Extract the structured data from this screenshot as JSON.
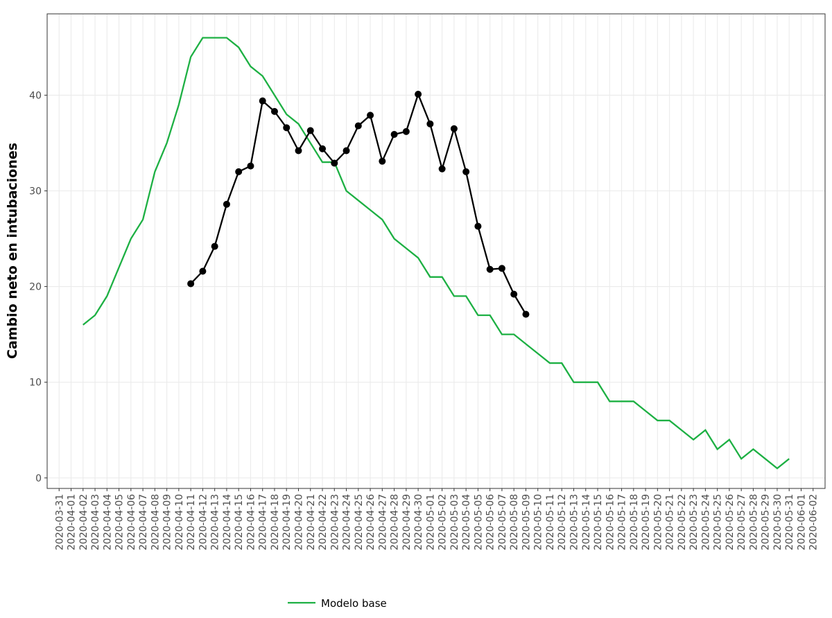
{
  "chart_data": {
    "type": "line",
    "ylabel": "Cambio neto en intubaciones",
    "xlim": [
      "2020-03-30",
      "2020-06-03"
    ],
    "ylim": [
      -1.1,
      48.5
    ],
    "yticks": [
      0,
      10,
      20,
      30,
      40
    ],
    "xticks": [
      "2020-03-31",
      "2020-04-01",
      "2020-04-02",
      "2020-04-03",
      "2020-04-04",
      "2020-04-05",
      "2020-04-06",
      "2020-04-07",
      "2020-04-08",
      "2020-04-09",
      "2020-04-10",
      "2020-04-11",
      "2020-04-12",
      "2020-04-13",
      "2020-04-14",
      "2020-04-15",
      "2020-04-16",
      "2020-04-17",
      "2020-04-18",
      "2020-04-19",
      "2020-04-20",
      "2020-04-21",
      "2020-04-22",
      "2020-04-23",
      "2020-04-24",
      "2020-04-25",
      "2020-04-26",
      "2020-04-27",
      "2020-04-28",
      "2020-04-29",
      "2020-04-30",
      "2020-05-01",
      "2020-05-02",
      "2020-05-03",
      "2020-05-04",
      "2020-05-05",
      "2020-05-06",
      "2020-05-07",
      "2020-05-08",
      "2020-05-09",
      "2020-05-10",
      "2020-05-11",
      "2020-05-12",
      "2020-05-13",
      "2020-05-14",
      "2020-05-15",
      "2020-05-16",
      "2020-05-17",
      "2020-05-18",
      "2020-05-19",
      "2020-05-20",
      "2020-05-21",
      "2020-05-22",
      "2020-05-23",
      "2020-05-24",
      "2020-05-25",
      "2020-05-26",
      "2020-05-27",
      "2020-05-28",
      "2020-05-29",
      "2020-05-30",
      "2020-05-31",
      "2020-06-01",
      "2020-06-02"
    ],
    "grid": true,
    "legend": "bottom",
    "series": [
      {
        "name": "Modelo base",
        "color": "#1db043",
        "markers": false,
        "x": [
          "2020-04-02",
          "2020-04-03",
          "2020-04-04",
          "2020-04-05",
          "2020-04-06",
          "2020-04-07",
          "2020-04-08",
          "2020-04-09",
          "2020-04-10",
          "2020-04-11",
          "2020-04-12",
          "2020-04-13",
          "2020-04-14",
          "2020-04-15",
          "2020-04-16",
          "2020-04-17",
          "2020-04-18",
          "2020-04-19",
          "2020-04-20",
          "2020-04-21",
          "2020-04-22",
          "2020-04-23",
          "2020-04-24",
          "2020-04-25",
          "2020-04-26",
          "2020-04-27",
          "2020-04-28",
          "2020-04-29",
          "2020-04-30",
          "2020-05-01",
          "2020-05-02",
          "2020-05-03",
          "2020-05-04",
          "2020-05-05",
          "2020-05-06",
          "2020-05-07",
          "2020-05-08",
          "2020-05-09",
          "2020-05-10",
          "2020-05-11",
          "2020-05-12",
          "2020-05-13",
          "2020-05-14",
          "2020-05-15",
          "2020-05-16",
          "2020-05-17",
          "2020-05-18",
          "2020-05-19",
          "2020-05-20",
          "2020-05-21",
          "2020-05-22",
          "2020-05-23",
          "2020-05-24",
          "2020-05-25",
          "2020-05-26",
          "2020-05-27",
          "2020-05-28",
          "2020-05-29",
          "2020-05-30",
          "2020-05-31"
        ],
        "values": [
          16,
          17,
          19,
          22,
          25,
          27,
          32,
          35,
          39,
          44,
          46,
          46,
          46,
          45,
          43,
          42,
          40,
          38,
          37,
          35,
          33,
          33,
          30,
          29,
          28,
          27,
          25,
          24,
          23,
          21,
          21,
          19,
          19,
          17,
          17,
          15,
          15,
          14,
          13,
          12,
          12,
          10,
          10,
          10,
          8,
          8,
          8,
          7,
          6,
          6,
          5,
          4,
          5,
          3,
          4,
          2,
          3,
          2,
          1,
          2
        ]
      },
      {
        "color": "#000000",
        "markers": true,
        "x": [
          "2020-04-11",
          "2020-04-12",
          "2020-04-13",
          "2020-04-14",
          "2020-04-15",
          "2020-04-16",
          "2020-04-17",
          "2020-04-18",
          "2020-04-19",
          "2020-04-20",
          "2020-04-21",
          "2020-04-22",
          "2020-04-23",
          "2020-04-24",
          "2020-04-25",
          "2020-04-26",
          "2020-04-27",
          "2020-04-28",
          "2020-04-29",
          "2020-04-30",
          "2020-05-01",
          "2020-05-02",
          "2020-05-03",
          "2020-05-04",
          "2020-05-05",
          "2020-05-06",
          "2020-05-07",
          "2020-05-08",
          "2020-05-09"
        ],
        "values": [
          20.3,
          21.6,
          24.2,
          28.6,
          32.0,
          32.6,
          39.4,
          38.3,
          36.6,
          34.2,
          36.3,
          34.4,
          32.9,
          34.2,
          36.8,
          37.9,
          33.1,
          35.9,
          36.2,
          40.1,
          37.0,
          32.3,
          36.5,
          32.0,
          26.3,
          21.8,
          21.9,
          19.2,
          17.1
        ]
      }
    ]
  }
}
